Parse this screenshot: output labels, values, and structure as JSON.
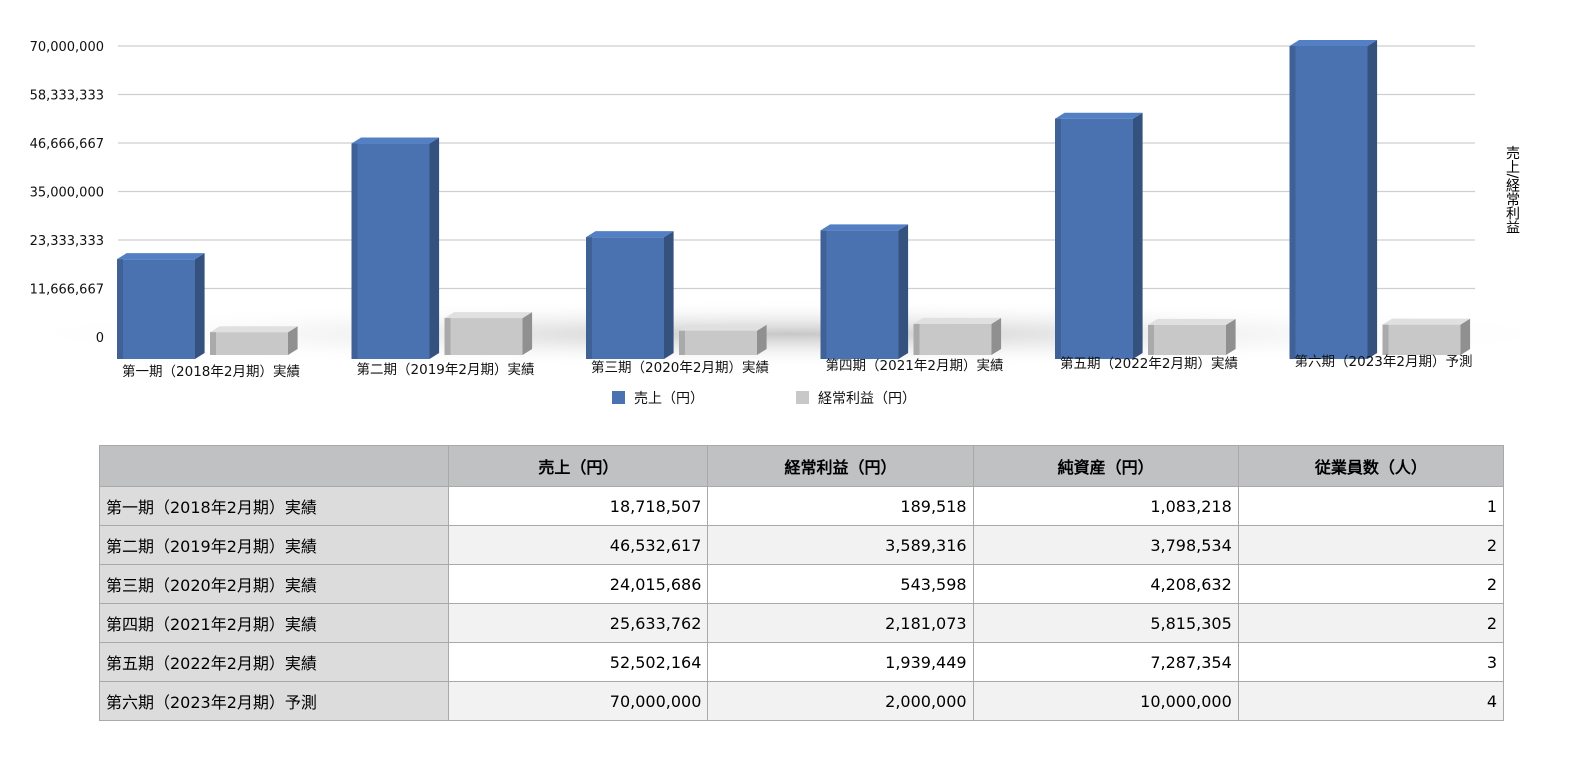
{
  "chart_data": {
    "type": "bar",
    "categories": [
      "第一期（2018年2月期）実績",
      "第二期（2019年2月期）実績",
      "第三期（2020年2月期）実績",
      "第四期（2021年2月期）実績",
      "第五期（2022年2月期）実績",
      "第六期（2023年2月期）予測"
    ],
    "series": [
      {
        "name": "売上（円）",
        "values": [
          18718507,
          46532617,
          24015686,
          25633762,
          52502164,
          70000000
        ],
        "color": "#4a72b0"
      },
      {
        "name": "経常利益（円）",
        "values": [
          189518,
          3589316,
          543598,
          2181073,
          1939449,
          2000000
        ],
        "color": "#c8c8c8"
      }
    ],
    "ylim": [
      0,
      70000000
    ],
    "yticks": [
      "0",
      "11,666,667",
      "23,333,333",
      "35,000,000",
      "46,666,667",
      "58,333,333",
      "70,000,000"
    ],
    "ylabel": "売上/経常利益",
    "grid": true,
    "legend": "bottom"
  },
  "table": {
    "headers": [
      "",
      "売上（円）",
      "経常利益（円）",
      "純資産（円）",
      "従業員数（人）"
    ],
    "rows": [
      {
        "label": "第一期（2018年2月期）実績",
        "cells": [
          "18,718,507",
          "189,518",
          "1,083,218",
          "1"
        ]
      },
      {
        "label": "第二期（2019年2月期）実績",
        "cells": [
          "46,532,617",
          "3,589,316",
          "3,798,534",
          "2"
        ]
      },
      {
        "label": "第三期（2020年2月期）実績",
        "cells": [
          "24,015,686",
          "543,598",
          "4,208,632",
          "2"
        ]
      },
      {
        "label": "第四期（2021年2月期）実績",
        "cells": [
          "25,633,762",
          "2,181,073",
          "5,815,305",
          "2"
        ]
      },
      {
        "label": "第五期（2022年2月期）実績",
        "cells": [
          "52,502,164",
          "1,939,449",
          "7,287,354",
          "3"
        ]
      },
      {
        "label": "第六期（2023年2月期）予測",
        "cells": [
          "70,000,000",
          "2,000,000",
          "10,000,000",
          "4"
        ]
      }
    ]
  }
}
